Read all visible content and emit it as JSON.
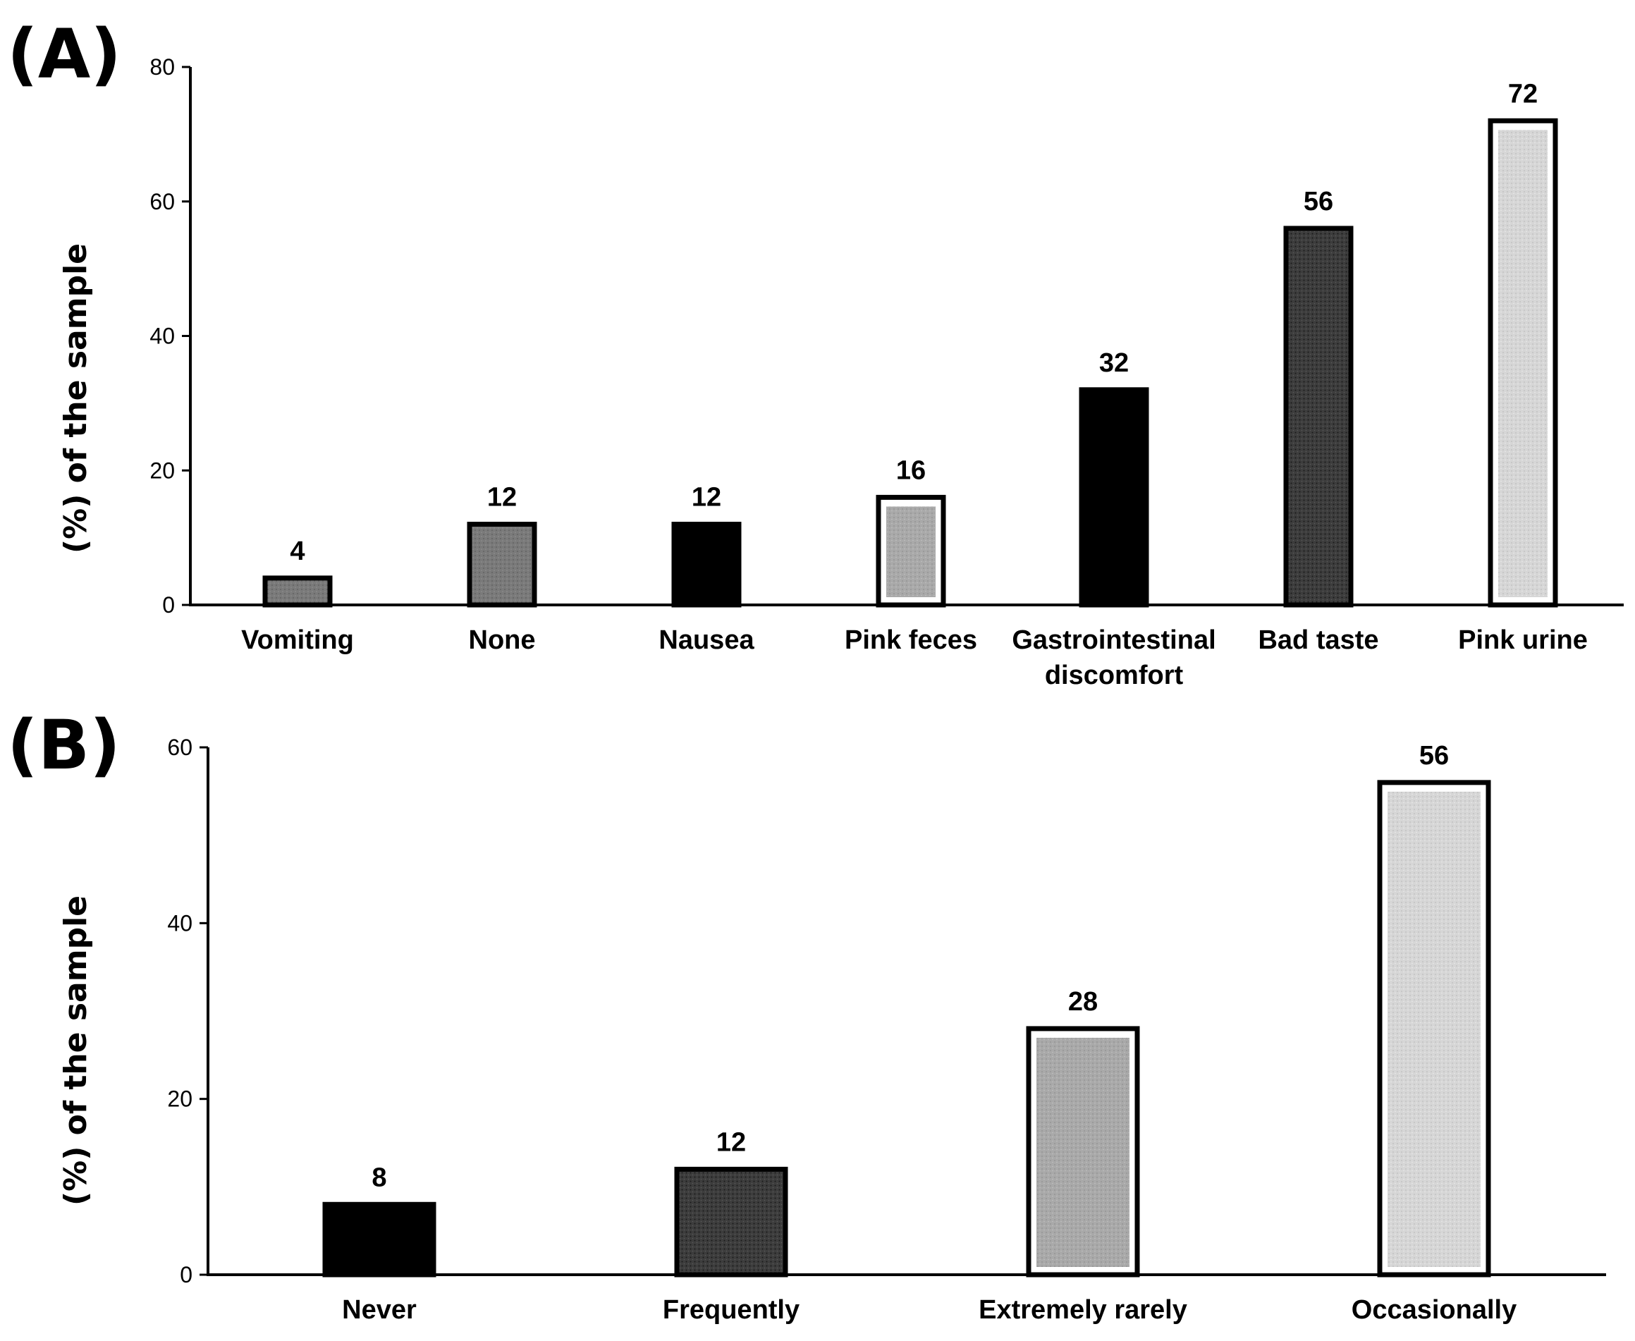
{
  "colors": {
    "black": "#000000",
    "dark_dotted": "#3d3d3d",
    "mid_gray": "#7a7a7a",
    "light_gray": "#a9a9a9",
    "pale_gray": "#cdcdcd"
  },
  "chart_data": [
    {
      "panel": "(A)",
      "type": "bar",
      "ylabel": "(%) of the sample",
      "xlabel": "",
      "ylim": [
        0,
        80
      ],
      "yticks": [
        0,
        20,
        40,
        60,
        80
      ],
      "categories": [
        "Vomiting",
        "None",
        "Nausea",
        "Pink feces",
        "Gastrointestinal discomfort",
        "Bad taste",
        "Pink urine"
      ],
      "category_lines": [
        [
          "Vomiting"
        ],
        [
          "None"
        ],
        [
          "Nausea"
        ],
        [
          "Pink feces"
        ],
        [
          "Gastrointestinal",
          "discomfort"
        ],
        [
          "Bad taste"
        ],
        [
          "Pink urine"
        ]
      ],
      "values": [
        4,
        12,
        12,
        16,
        32,
        56,
        72
      ],
      "value_labels": [
        "4",
        "12",
        "12",
        "16",
        "32",
        "56",
        "72"
      ],
      "bar_fills": [
        "mid_gray",
        "mid_gray",
        "black",
        "light_gray",
        "black",
        "dark_dotted",
        "pale_gray"
      ]
    },
    {
      "panel": "(B)",
      "type": "bar",
      "ylabel": "(%) of the sample",
      "xlabel": "",
      "ylim": [
        0,
        60
      ],
      "yticks": [
        0,
        20,
        40,
        60
      ],
      "categories": [
        "Never",
        "Frequently",
        "Extremely rarely",
        "Occasionally"
      ],
      "category_lines": [
        [
          "Never"
        ],
        [
          "Frequently"
        ],
        [
          "Extremely rarely"
        ],
        [
          "Occasionally"
        ]
      ],
      "values": [
        8,
        12,
        28,
        56
      ],
      "value_labels": [
        "8",
        "12",
        "28",
        "56"
      ],
      "bar_fills": [
        "black",
        "dark_dotted",
        "light_gray",
        "pale_gray"
      ]
    }
  ]
}
